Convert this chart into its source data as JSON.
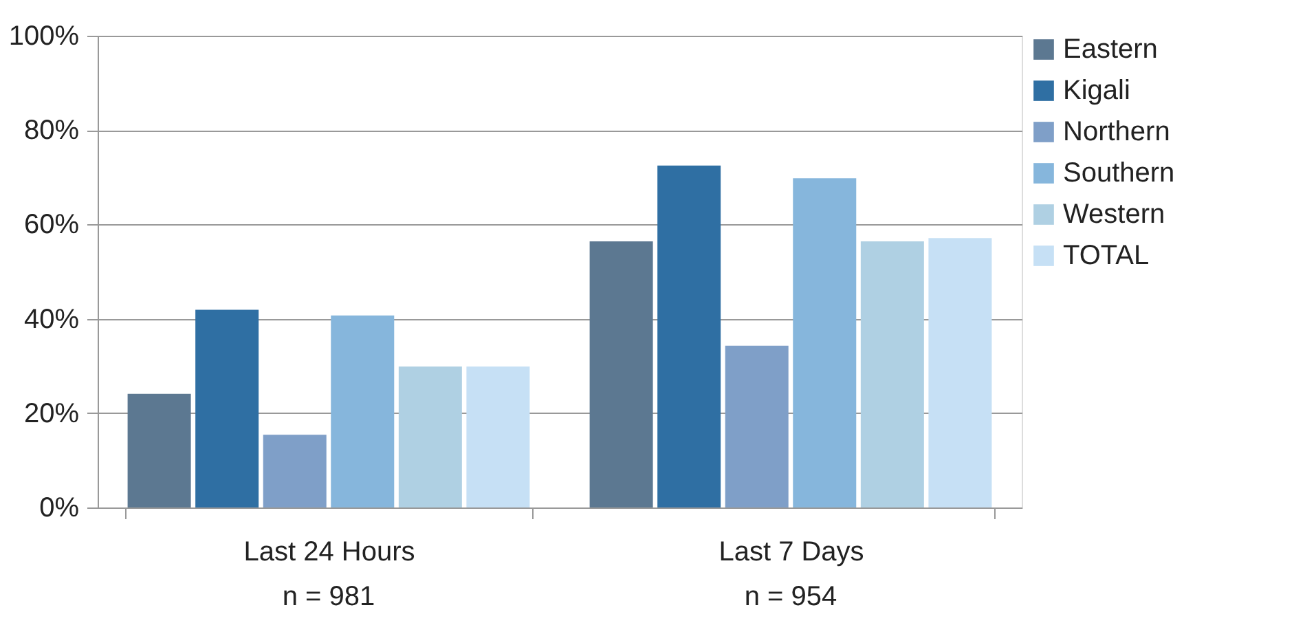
{
  "chart_data": {
    "type": "bar",
    "categories": [
      "Last 24 Hours",
      "Last 7 Days"
    ],
    "series": [
      {
        "name": "Eastern",
        "color": "#5c7891",
        "values": [
          24.1,
          56.4
        ]
      },
      {
        "name": "Kigali",
        "color": "#2f6fa3",
        "values": [
          41.9,
          72.5
        ]
      },
      {
        "name": "Northern",
        "color": "#7f9fc8",
        "values": [
          15.4,
          34.3
        ]
      },
      {
        "name": "Southern",
        "color": "#86b6dc",
        "values": [
          40.7,
          69.8
        ]
      },
      {
        "name": "Western",
        "color": "#afd0e3",
        "values": [
          29.9,
          56.4
        ]
      },
      {
        "name": "TOTAL",
        "color": "#c6e0f5",
        "values": [
          29.9,
          57.1
        ]
      }
    ],
    "ylim": [
      0,
      100
    ],
    "yticks": [
      {
        "value": 0,
        "label": "0%"
      },
      {
        "value": 20,
        "label": "20%"
      },
      {
        "value": 40,
        "label": "40%"
      },
      {
        "value": 60,
        "label": "60%"
      },
      {
        "value": 80,
        "label": "80%"
      },
      {
        "value": 100,
        "label": "100%"
      }
    ],
    "grid": "y",
    "legend": "right",
    "annotations": [
      "n = 981",
      "n = 954"
    ]
  }
}
